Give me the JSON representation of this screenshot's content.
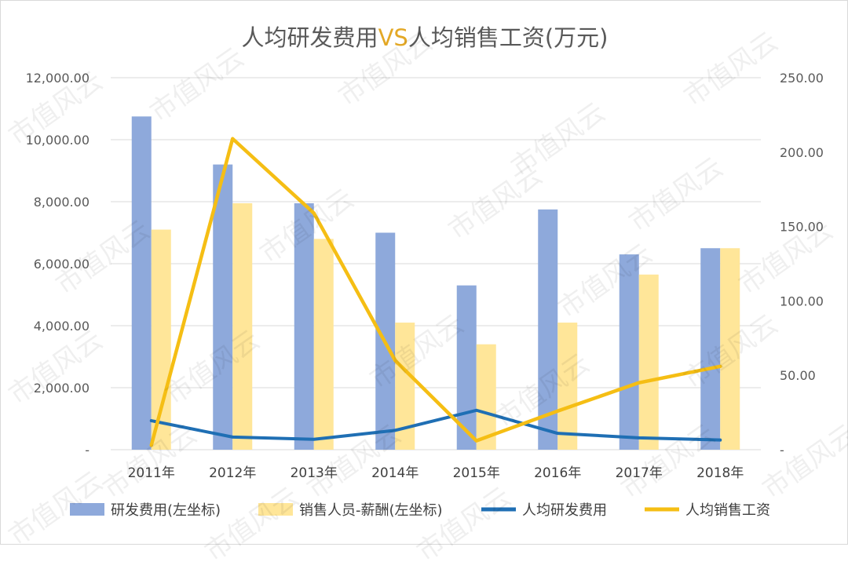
{
  "chart_data": {
    "type": "bar",
    "title_parts": [
      {
        "text": "人均研发费用",
        "color": "#595959"
      },
      {
        "text": "VS",
        "color": "#E3A826"
      },
      {
        "text": "人均销售工资(万元)",
        "color": "#595959"
      }
    ],
    "categories": [
      "2011年",
      "2012年",
      "2013年",
      "2014年",
      "2015年",
      "2016年",
      "2017年",
      "2018年"
    ],
    "left_axis": {
      "min": 0,
      "max": 12000,
      "step": 2000,
      "tick_labels": [
        "-",
        "2,000.00",
        "4,000.00",
        "6,000.00",
        "8,000.00",
        "10,000.00",
        "12,000.00"
      ]
    },
    "right_axis": {
      "min": 0,
      "max": 250,
      "step": 50,
      "tick_labels": [
        "-",
        "50.00",
        "100.00",
        "150.00",
        "200.00",
        "250.00"
      ]
    },
    "grid": true,
    "legend_position": "bottom",
    "series": [
      {
        "name": "研发费用(左坐标)",
        "kind": "bar",
        "axis": "left",
        "color": "#8EA9DB",
        "values": [
          10750,
          9200,
          7950,
          7000,
          5300,
          7750,
          6300,
          6500
        ]
      },
      {
        "name": "销售人员-薪酬(左坐标)",
        "kind": "bar",
        "axis": "left",
        "color": "#FFE699",
        "values": [
          7100,
          7950,
          6800,
          4100,
          3400,
          4100,
          5650,
          6500
        ]
      },
      {
        "name": "人均研发费用",
        "kind": "line",
        "axis": "right",
        "color": "#1F6FB4",
        "values": [
          19.5,
          8.5,
          7,
          13,
          26.5,
          11,
          8,
          6.5
        ]
      },
      {
        "name": "人均销售工资",
        "kind": "line",
        "axis": "right",
        "color": "#F5BE14",
        "values": [
          3,
          209,
          159,
          60,
          6,
          26,
          45,
          56
        ]
      }
    ]
  },
  "watermark": "市值风云"
}
